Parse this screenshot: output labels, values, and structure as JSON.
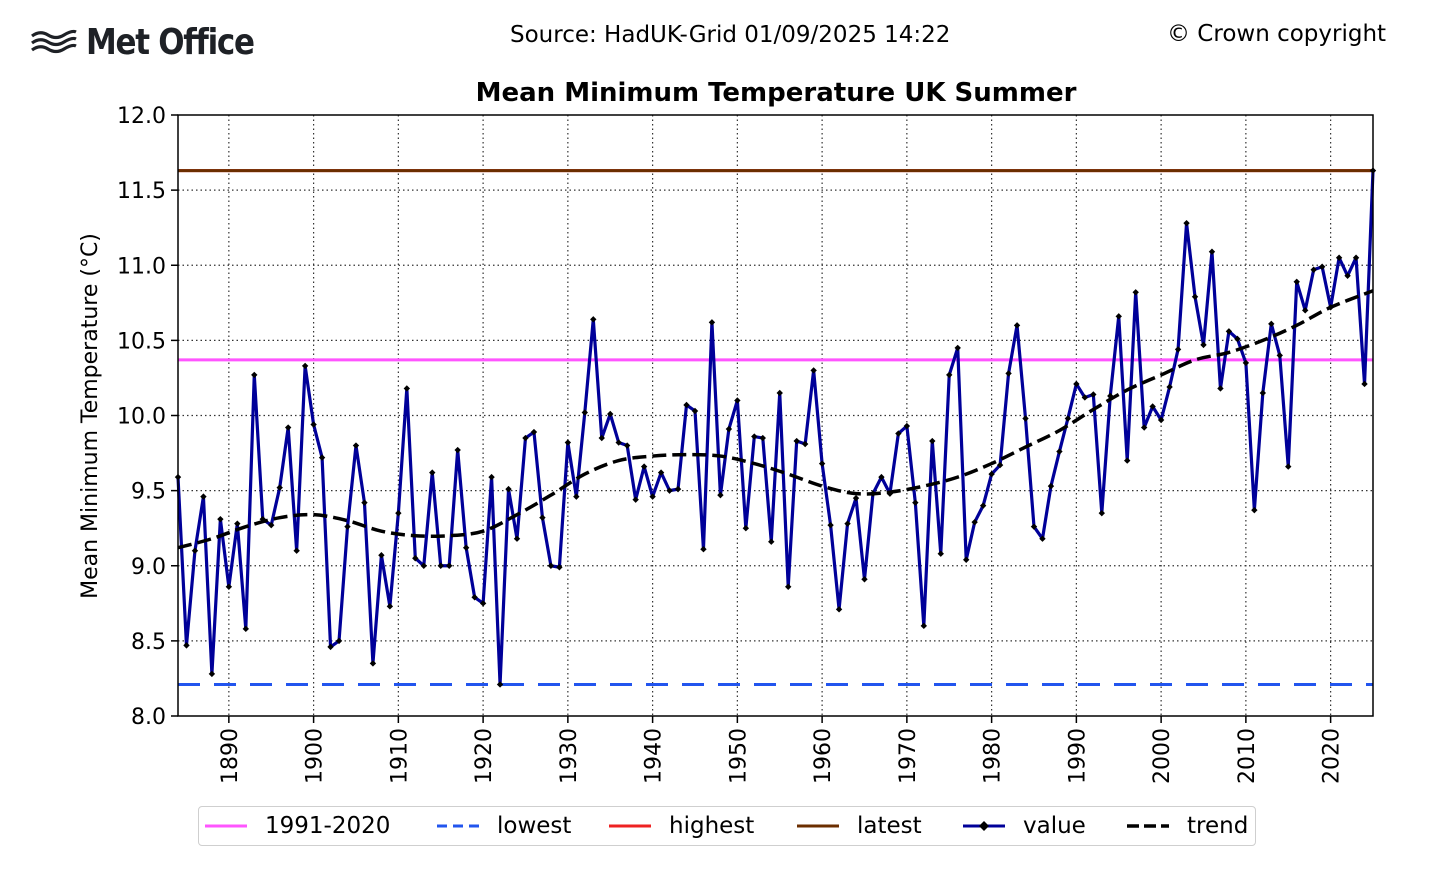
{
  "header": {
    "logo_text": "Met Office",
    "source": "Source: HadUK-Grid 01/09/2025 14:22",
    "copyright": "© Crown copyright"
  },
  "colors": {
    "baseline": "#ff55ff",
    "lowest": "#2255ee",
    "highest": "#ee2222",
    "latest": "#6b2e00",
    "value": "#000099",
    "trend": "#000000"
  },
  "chart_data": {
    "type": "line",
    "title": "Mean Minimum Temperature UK Summer",
    "xlabel": "",
    "ylabel": "Mean Minimum Temperature (°C)",
    "xlim": [
      1884,
      2025
    ],
    "ylim": [
      8.0,
      12.0
    ],
    "x_ticks": [
      1890,
      1900,
      1910,
      1920,
      1930,
      1940,
      1950,
      1960,
      1970,
      1980,
      1990,
      2000,
      2010,
      2020
    ],
    "y_ticks": [
      8.0,
      8.5,
      9.0,
      9.5,
      10.0,
      10.5,
      11.0,
      11.5,
      12.0
    ],
    "grid": true,
    "legend_position": "bottom",
    "legend": [
      "1991-2020",
      "lowest",
      "highest",
      "latest",
      "value",
      "trend"
    ],
    "reference_lines": {
      "1991-2020": 10.37,
      "lowest": 8.21,
      "highest": 11.63,
      "latest": 11.63
    },
    "series": [
      {
        "name": "value",
        "start_year": 1884,
        "values": [
          9.59,
          8.47,
          9.1,
          9.46,
          8.28,
          9.31,
          8.86,
          9.28,
          8.58,
          10.27,
          9.31,
          9.27,
          9.52,
          9.92,
          9.1,
          10.33,
          9.94,
          9.72,
          8.46,
          8.5,
          9.26,
          9.8,
          9.42,
          8.35,
          9.07,
          8.73,
          9.35,
          10.18,
          9.05,
          9.0,
          9.62,
          9.0,
          9.0,
          9.77,
          9.12,
          8.79,
          8.75,
          9.59,
          8.21,
          9.51,
          9.18,
          9.85,
          9.89,
          9.32,
          9.0,
          8.99,
          9.82,
          9.46,
          10.02,
          10.64,
          9.85,
          10.01,
          9.82,
          9.8,
          9.44,
          9.66,
          9.46,
          9.62,
          9.5,
          9.51,
          10.07,
          10.03,
          9.11,
          10.62,
          9.47,
          9.91,
          10.1,
          9.25,
          9.86,
          9.85,
          9.16,
          10.15,
          8.86,
          9.83,
          9.81,
          10.3,
          9.68,
          9.27,
          8.71,
          9.28,
          9.45,
          8.91,
          9.48,
          9.59,
          9.48,
          9.88,
          9.93,
          9.42,
          8.6,
          9.83,
          9.08,
          10.27,
          10.45,
          9.04,
          9.29,
          9.4,
          9.61,
          9.67,
          10.28,
          10.6,
          9.98,
          9.26,
          9.18,
          9.53,
          9.76,
          9.98,
          10.21,
          10.12,
          10.14,
          9.35,
          10.13,
          10.66,
          9.7,
          10.82,
          9.92,
          10.06,
          9.97,
          10.19,
          10.44,
          11.28,
          10.79,
          10.47,
          11.09,
          10.18,
          10.56,
          10.51,
          10.35,
          9.37,
          10.15,
          10.61,
          10.4,
          9.66,
          10.89,
          10.7,
          10.97,
          10.99,
          10.72,
          11.05,
          10.93,
          11.05,
          10.21,
          11.63
        ]
      },
      {
        "name": "trend",
        "x": [
          1884,
          1888,
          1892,
          1896,
          1900,
          1904,
          1908,
          1912,
          1916,
          1920,
          1924,
          1928,
          1932,
          1936,
          1940,
          1944,
          1948,
          1952,
          1956,
          1960,
          1964,
          1968,
          1972,
          1976,
          1980,
          1984,
          1988,
          1992,
          1996,
          2000,
          2004,
          2008,
          2012,
          2016,
          2020,
          2025
        ],
        "values": [
          9.12,
          9.18,
          9.26,
          9.32,
          9.34,
          9.3,
          9.23,
          9.2,
          9.2,
          9.23,
          9.34,
          9.47,
          9.61,
          9.7,
          9.73,
          9.74,
          9.73,
          9.68,
          9.61,
          9.53,
          9.48,
          9.49,
          9.53,
          9.59,
          9.68,
          9.79,
          9.9,
          10.04,
          10.17,
          10.27,
          10.37,
          10.42,
          10.5,
          10.6,
          10.72,
          10.83
        ]
      }
    ]
  }
}
